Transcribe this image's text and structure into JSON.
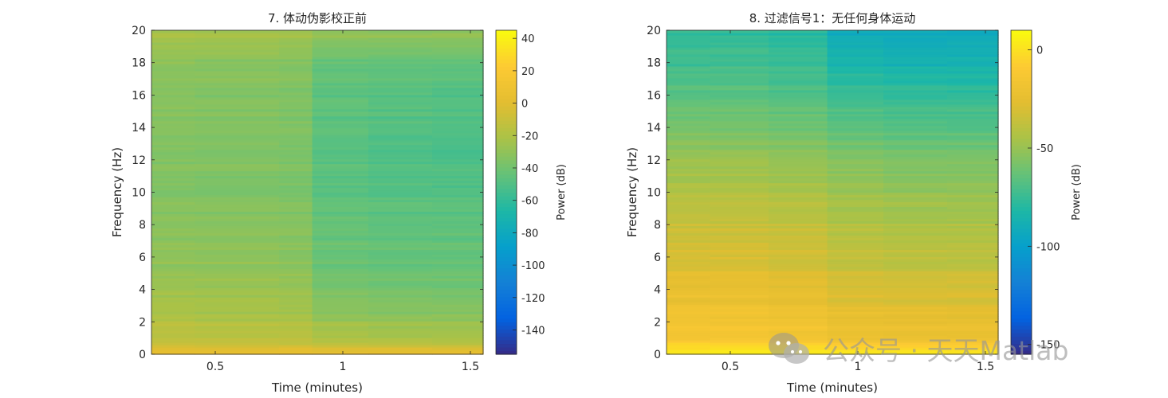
{
  "chart_data": [
    {
      "type": "heatmap",
      "title": "7. 体动伪影校正前",
      "xlabel": "Time (minutes)",
      "ylabel": "Frequency (Hz)",
      "xlim": [
        0.25,
        1.55
      ],
      "ylim": [
        0,
        20
      ],
      "xticks": [
        "0.5",
        "1",
        "1.5"
      ],
      "xtick_values": [
        0.5,
        1,
        1.5
      ],
      "yticks": [
        "0",
        "2",
        "4",
        "6",
        "8",
        "10",
        "12",
        "14",
        "16",
        "18",
        "20"
      ],
      "ytick_values": [
        0,
        2,
        4,
        6,
        8,
        10,
        12,
        14,
        16,
        18,
        20
      ],
      "colorbar": {
        "label": "Power (dB)",
        "limits": [
          -155,
          45
        ],
        "ticks": [
          "40",
          "20",
          "0",
          "-20",
          "-40",
          "-60",
          "-80",
          "-100",
          "-120",
          "-140"
        ],
        "tick_values": [
          40,
          20,
          0,
          -20,
          -40,
          -60,
          -80,
          -100,
          -120,
          -140
        ]
      },
      "colormap": "parula",
      "time_segments": [
        0.25,
        0.42,
        0.75,
        0.88,
        1.1,
        1.35,
        1.55
      ],
      "power_db_by_freq": {
        "frequency_hz": [
          0,
          0.5,
          1,
          2,
          3,
          4,
          6,
          8,
          10,
          12,
          14,
          16,
          18,
          19.5,
          20
        ],
        "segment_power_db": [
          [
            8,
            -5,
            -14,
            -18,
            -24,
            -26,
            -30,
            -32,
            -34,
            -34,
            -34,
            -33,
            -32,
            -22,
            -22
          ],
          [
            8,
            -6,
            -15,
            -19,
            -25,
            -27,
            -31,
            -33,
            -35,
            -35,
            -35,
            -34,
            -33,
            -23,
            -23
          ],
          [
            8,
            -6,
            -16,
            -20,
            -26,
            -28,
            -32,
            -34,
            -36,
            -36,
            -36,
            -35,
            -34,
            -24,
            -24
          ],
          [
            8,
            -8,
            -20,
            -26,
            -34,
            -38,
            -42,
            -44,
            -46,
            -47,
            -47,
            -46,
            -44,
            -30,
            -30
          ],
          [
            8,
            -8,
            -22,
            -28,
            -36,
            -40,
            -44,
            -46,
            -48,
            -50,
            -50,
            -48,
            -45,
            -30,
            -30
          ],
          [
            8,
            -8,
            -22,
            -28,
            -36,
            -40,
            -44,
            -46,
            -48,
            -51,
            -51,
            -49,
            -45,
            -30,
            -30
          ]
        ]
      }
    },
    {
      "type": "heatmap",
      "title": "8. 过滤信号1：无任何身体运动",
      "xlabel": "Time (minutes)",
      "ylabel": "Frequency (Hz)",
      "xlim": [
        0.25,
        1.55
      ],
      "ylim": [
        0,
        20
      ],
      "xticks": [
        "0.5",
        "1",
        "1.5"
      ],
      "xtick_values": [
        0.5,
        1,
        1.5
      ],
      "yticks": [
        "0",
        "2",
        "4",
        "6",
        "8",
        "10",
        "12",
        "14",
        "16",
        "18",
        "20"
      ],
      "ytick_values": [
        0,
        2,
        4,
        6,
        8,
        10,
        12,
        14,
        16,
        18,
        20
      ],
      "colorbar": {
        "label": "Power (dB)",
        "limits": [
          -155,
          10
        ],
        "ticks": [
          "0",
          "-50",
          "-100",
          "-150"
        ],
        "tick_values": [
          0,
          -50,
          -100,
          -150
        ]
      },
      "colormap": "parula",
      "time_segments": [
        0.25,
        0.42,
        0.65,
        0.88,
        1.1,
        1.35,
        1.55
      ],
      "power_db_by_freq": {
        "frequency_hz": [
          0,
          0.5,
          1,
          2,
          3,
          4,
          6,
          8,
          10,
          12,
          14,
          16,
          18,
          20
        ],
        "segment_power_db": [
          [
            8,
            -6,
            -12,
            -16,
            -20,
            -24,
            -30,
            -35,
            -42,
            -50,
            -58,
            -66,
            -73,
            -78
          ],
          [
            8,
            -5,
            -12,
            -16,
            -20,
            -24,
            -30,
            -35,
            -42,
            -50,
            -58,
            -66,
            -73,
            -78
          ],
          [
            8,
            -6,
            -14,
            -18,
            -22,
            -26,
            -32,
            -37,
            -44,
            -52,
            -60,
            -68,
            -75,
            -80
          ],
          [
            8,
            -10,
            -18,
            -22,
            -27,
            -31,
            -37,
            -42,
            -48,
            -56,
            -65,
            -74,
            -85,
            -92
          ],
          [
            8,
            -10,
            -19,
            -23,
            -28,
            -32,
            -39,
            -44,
            -50,
            -58,
            -67,
            -76,
            -87,
            -94
          ],
          [
            8,
            -10,
            -19,
            -23,
            -28,
            -32,
            -39,
            -44,
            -50,
            -58,
            -67,
            -76,
            -87,
            -94
          ]
        ]
      }
    }
  ],
  "watermark": {
    "text": "公众号 · 天天Matlab",
    "icon": "wechat-icon"
  }
}
